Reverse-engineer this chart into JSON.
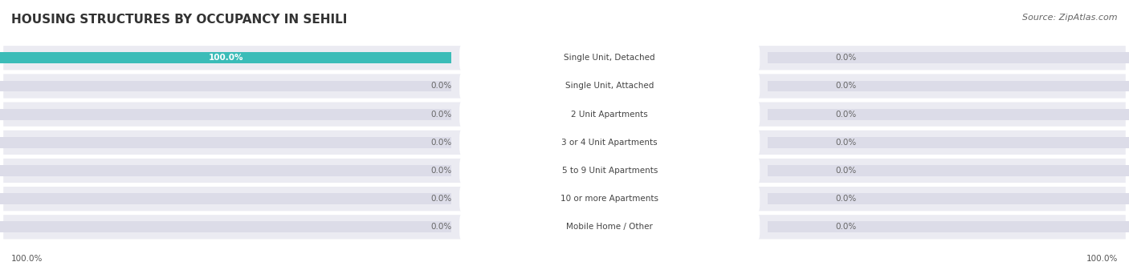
{
  "title": "HOUSING STRUCTURES BY OCCUPANCY IN SEHILI",
  "source": "Source: ZipAtlas.com",
  "categories": [
    "Single Unit, Detached",
    "Single Unit, Attached",
    "2 Unit Apartments",
    "3 or 4 Unit Apartments",
    "5 to 9 Unit Apartments",
    "10 or more Apartments",
    "Mobile Home / Other"
  ],
  "owner_values": [
    100.0,
    0.0,
    0.0,
    0.0,
    0.0,
    0.0,
    0.0
  ],
  "renter_values": [
    0.0,
    0.0,
    0.0,
    0.0,
    0.0,
    0.0,
    0.0
  ],
  "owner_color": "#3bbcb8",
  "renter_color": "#f4afc8",
  "bar_bg_color": "#dcdce8",
  "row_bg_color": "#ebebf2",
  "row_bg_color_alt": "#f5f5f9",
  "title_fontsize": 11,
  "label_fontsize": 7.5,
  "value_fontsize": 7.5,
  "legend_fontsize": 8,
  "source_fontsize": 8,
  "x_axis_left_label": "100.0%",
  "x_axis_right_label": "100.0%"
}
